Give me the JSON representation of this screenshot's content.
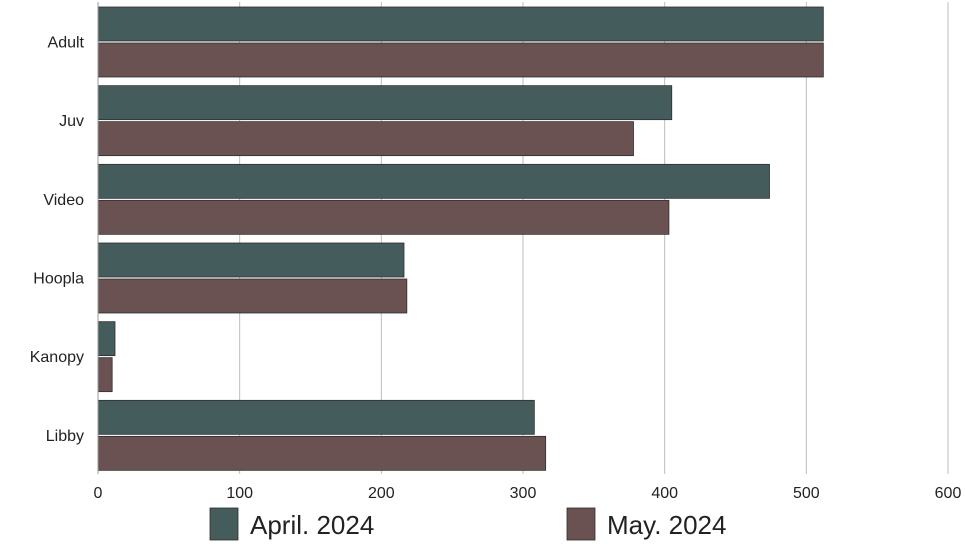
{
  "chart_data": {
    "type": "bar",
    "orientation": "horizontal",
    "categories": [
      "Adult",
      "Juv",
      "Video",
      "Hoopla",
      "Kanopy",
      "Libby"
    ],
    "series": [
      {
        "name": "April. 2024",
        "values": [
          512,
          405,
          474,
          216,
          12,
          308
        ],
        "color": "#455c5c"
      },
      {
        "name": "May. 2024",
        "values": [
          512,
          378,
          403,
          218,
          10,
          316
        ],
        "color": "#6a5252"
      }
    ],
    "xlim": [
      0,
      600
    ],
    "xticks": [
      "0",
      "100",
      "200",
      "300",
      "400",
      "500",
      "600"
    ],
    "grid": true,
    "legend_position": "bottom"
  }
}
